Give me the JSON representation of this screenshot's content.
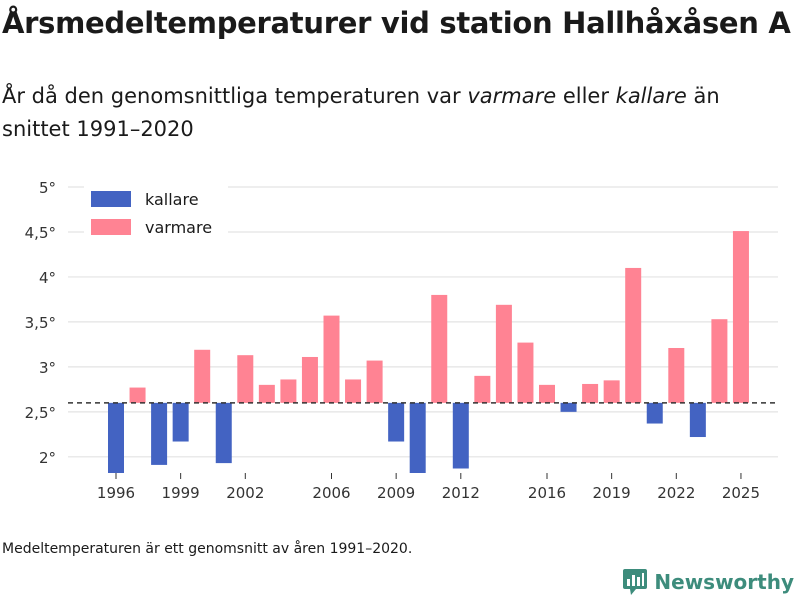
{
  "header": {
    "title": "Årsmedeltemperaturer vid station Hallhåxåsen A",
    "subtitle_part1": "År då den genomsnittliga temperaturen var ",
    "subtitle_warm": "varmare",
    "subtitle_part2": " eller ",
    "subtitle_cold": "kallare",
    "subtitle_part3": " än snittet 1991–2020"
  },
  "chart_data": {
    "type": "bar",
    "title": "Årsmedeltemperaturer vid station Hallhåxåsen A",
    "xlabel": "",
    "ylabel": "",
    "baseline": 2.6,
    "ylim": [
      1.82,
      5.0
    ],
    "yticks": [
      2,
      2.5,
      3,
      3.5,
      4,
      4.5,
      5
    ],
    "ytick_labels": [
      "2°",
      "2,5°",
      "3°",
      "3,5°",
      "4°",
      "4,5°",
      "5°"
    ],
    "xticks": [
      1996,
      1999,
      2002,
      2006,
      2009,
      2012,
      2016,
      2019,
      2022,
      2025
    ],
    "grid": true,
    "legend_position": "top-left",
    "legend": [
      {
        "key": "cold",
        "label": "kallare",
        "color": "#4363c2"
      },
      {
        "key": "warm",
        "label": "varmare",
        "color": "#ff8393"
      }
    ],
    "years": [
      1996,
      1997,
      1998,
      1999,
      2000,
      2001,
      2002,
      2003,
      2004,
      2005,
      2006,
      2007,
      2008,
      2009,
      2010,
      2011,
      2012,
      2013,
      2014,
      2015,
      2016,
      2017,
      2018,
      2019,
      2020,
      2021,
      2022,
      2023,
      2024,
      2025
    ],
    "values": [
      1.82,
      2.77,
      1.91,
      2.17,
      3.19,
      1.93,
      3.13,
      2.8,
      2.86,
      3.11,
      3.57,
      2.86,
      3.07,
      2.17,
      1.82,
      3.8,
      1.87,
      2.9,
      3.69,
      3.27,
      2.8,
      2.5,
      2.81,
      2.85,
      4.1,
      2.37,
      3.21,
      2.22,
      3.53,
      4.51
    ]
  },
  "footnote": "Medeltemperaturen är ett genomsnitt av åren 1991–2020.",
  "brand": {
    "name": "Newsworthy"
  },
  "colors": {
    "cold": "#4363c2",
    "warm": "#ff8393",
    "grid": "#e3e3e3",
    "brand": "#3d8c7c"
  }
}
